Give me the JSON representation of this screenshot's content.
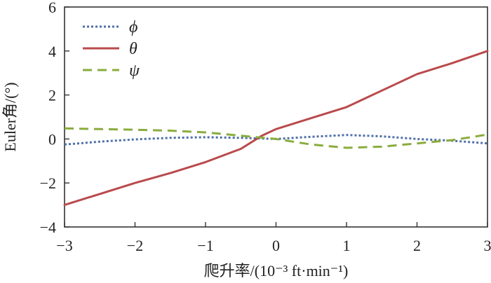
{
  "chart_data": {
    "type": "line",
    "title": "",
    "xlabel": "爬升率/(10⁻³ ft·min⁻¹)",
    "ylabel": "Euler角/(°)",
    "xlim": [
      -3,
      3
    ],
    "ylim": [
      -4,
      6
    ],
    "xticks": [
      -3,
      -2,
      -1,
      0,
      1,
      2,
      3
    ],
    "yticks": [
      -4,
      -2,
      0,
      2,
      4,
      6
    ],
    "xtick_labels": [
      "−3",
      "−2",
      "−1",
      "0",
      "1",
      "2",
      "3"
    ],
    "ytick_labels": [
      "−4",
      "−2",
      "0",
      "2",
      "4",
      "6"
    ],
    "grid": false,
    "legend_position": "top-left",
    "series": [
      {
        "name": "ϕ",
        "color": "#4f6fa8",
        "style": "dotted",
        "x": [
          -3,
          -2.5,
          -2,
          -1.5,
          -1,
          -0.5,
          0,
          0.5,
          1,
          1.5,
          2,
          2.5,
          3
        ],
        "y": [
          -0.25,
          -0.12,
          -0.02,
          0.05,
          0.08,
          0.05,
          0.0,
          0.1,
          0.18,
          0.12,
          0.0,
          -0.08,
          -0.2
        ]
      },
      {
        "name": "θ",
        "color": "#b94a4c",
        "style": "solid",
        "x": [
          -3,
          -2.5,
          -2,
          -1.5,
          -1,
          -0.5,
          -0.2,
          0,
          0.5,
          1,
          1.5,
          2,
          2.5,
          3
        ],
        "y": [
          -3.0,
          -2.5,
          -2.0,
          -1.55,
          -1.05,
          -0.45,
          0.15,
          0.45,
          0.95,
          1.45,
          2.2,
          2.95,
          3.45,
          4.0
        ]
      },
      {
        "name": "ψ",
        "color": "#8aac3e",
        "style": "dashed",
        "x": [
          -3,
          -2.5,
          -2,
          -1.5,
          -1,
          -0.5,
          0,
          0.5,
          1,
          1.5,
          2,
          2.5,
          3
        ],
        "y": [
          0.48,
          0.45,
          0.42,
          0.38,
          0.3,
          0.15,
          0.0,
          -0.25,
          -0.4,
          -0.35,
          -0.2,
          -0.05,
          0.2
        ]
      }
    ]
  }
}
